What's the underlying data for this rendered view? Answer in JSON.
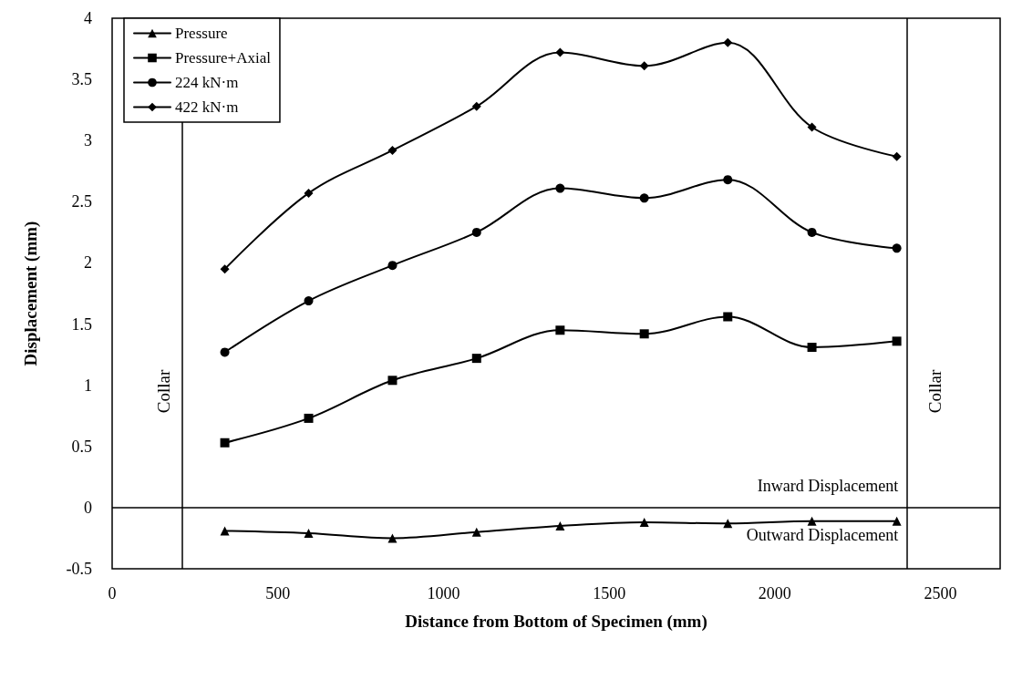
{
  "chart_data": {
    "type": "line",
    "xlabel": "Distance from Bottom of Specimen (mm)",
    "ylabel": "Displacement (mm)",
    "x": [
      340,
      593,
      846,
      1100,
      1352,
      1606,
      1858,
      2112,
      2368
    ],
    "series": [
      {
        "name": "Pressure",
        "color": "#000000",
        "marker": "triangle",
        "values": [
          -0.19,
          -0.21,
          -0.25,
          -0.2,
          -0.15,
          -0.12,
          -0.13,
          -0.11,
          -0.11
        ]
      },
      {
        "name": "Pressure+Axial",
        "color": "#000000",
        "marker": "square",
        "values": [
          0.53,
          0.73,
          1.04,
          1.22,
          1.45,
          1.42,
          1.56,
          1.31,
          1.36
        ]
      },
      {
        "name": "224 kN·m",
        "color": "#000000",
        "marker": "circle",
        "values": [
          1.27,
          1.69,
          1.98,
          2.25,
          2.61,
          2.53,
          2.68,
          2.25,
          2.12
        ]
      },
      {
        "name": "422 kN·m",
        "color": "#000000",
        "marker": "diamond",
        "values": [
          1.95,
          2.57,
          2.92,
          3.28,
          3.72,
          3.61,
          3.8,
          3.11,
          2.87
        ]
      }
    ],
    "xlim": [
      0,
      2680
    ],
    "xticks": [
      0,
      500,
      1000,
      1500,
      2000,
      2500
    ],
    "ylim": [
      -0.5,
      4
    ],
    "yticks": [
      -0.5,
      0,
      0.5,
      1,
      1.5,
      2,
      2.5,
      3,
      3.5,
      4
    ],
    "ref_lines": [
      {
        "axis": "x",
        "value": 210,
        "label": "Collar"
      },
      {
        "axis": "x",
        "value": 2400,
        "label": "Collar"
      },
      {
        "axis": "y",
        "value": 0,
        "label": null
      }
    ],
    "annotations": [
      "Inward Displacement",
      "Outward Displacement"
    ],
    "legend": "top left",
    "grid": false,
    "line_style": "solid"
  }
}
